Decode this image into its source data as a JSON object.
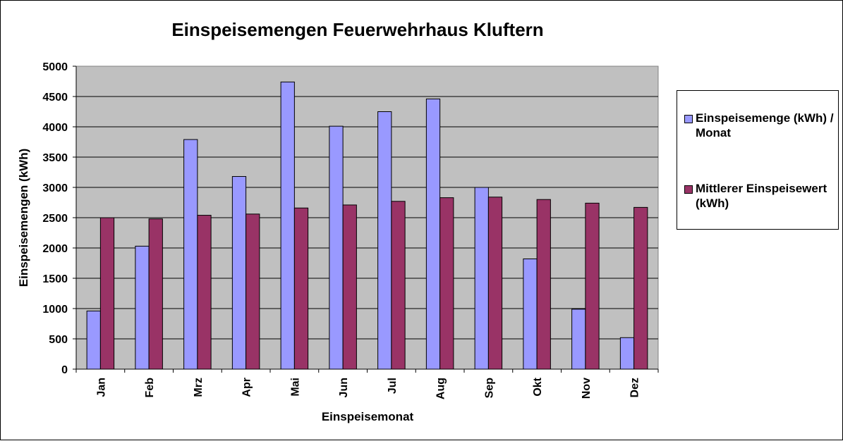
{
  "chart_data": {
    "type": "bar",
    "title": "Einspeisemengen Feuerwehrhaus Kluftern",
    "xlabel": "Einspeisemonat",
    "ylabel": "Einspeisemengen (kWh)",
    "categories": [
      "Jan",
      "Feb",
      "Mrz",
      "Apr",
      "Mai",
      "Jun",
      "Jul",
      "Aug",
      "Sep",
      "Okt",
      "Nov",
      "Dez"
    ],
    "ylim": [
      0,
      5000
    ],
    "yticks": [
      0,
      500,
      1000,
      1500,
      2000,
      2500,
      3000,
      3500,
      4000,
      4500,
      5000
    ],
    "grid": true,
    "legend_position": "right",
    "plot_background": "#c0c0c0",
    "series": [
      {
        "name": "Einspeisemenge (kWh) / Monat",
        "color": "#9999ff",
        "values": [
          960,
          2030,
          3790,
          3180,
          4740,
          4010,
          4250,
          4460,
          3000,
          1820,
          990,
          520
        ]
      },
      {
        "name": "Mittlerer Einspeisewert (kWh)",
        "color": "#993366",
        "values": [
          2500,
          2480,
          2540,
          2560,
          2660,
          2710,
          2770,
          2830,
          2840,
          2800,
          2740,
          2670
        ]
      }
    ]
  }
}
